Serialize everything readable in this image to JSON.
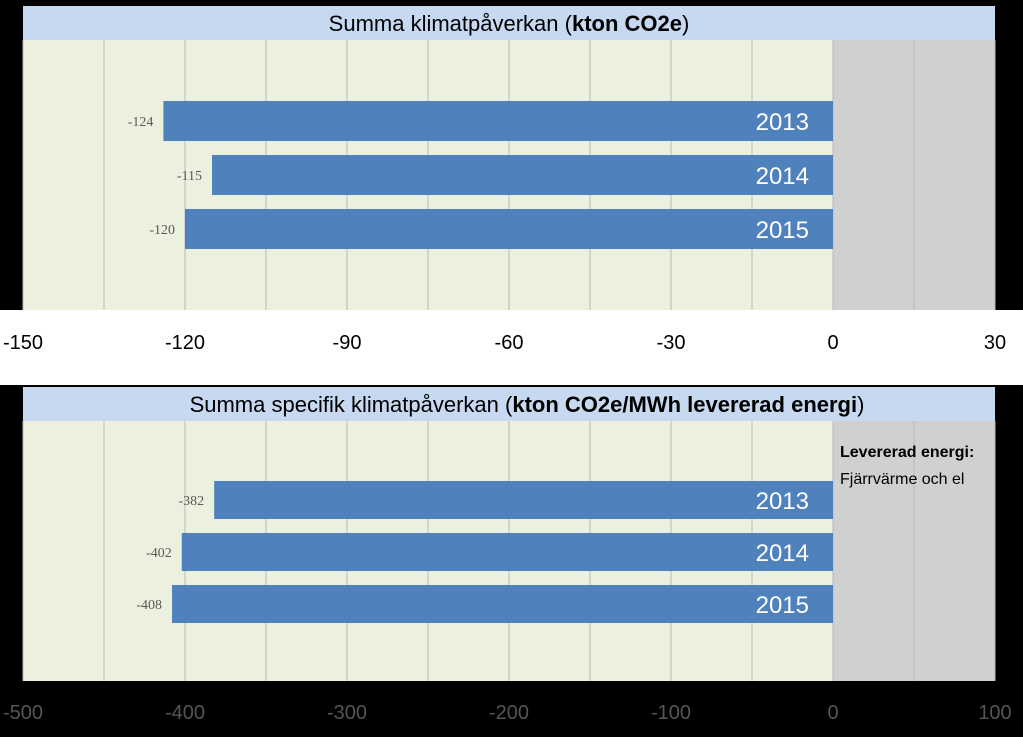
{
  "chart_data": [
    {
      "type": "bar",
      "orientation": "horizontal",
      "title_prefix": "Summa klimatpåverkan (",
      "title_bold": "kton CO2e",
      "title_suffix": ")",
      "categories": [
        "2013",
        "2014",
        "2015"
      ],
      "values": [
        -124,
        -115,
        -120
      ],
      "data_labels": [
        "-124",
        "-115",
        "-120"
      ],
      "xlim": [
        -150,
        30
      ],
      "ticks": [
        "-150",
        "-120",
        "-90",
        "-60",
        "-30",
        "0",
        "30"
      ],
      "shaded_range": [
        0,
        30
      ],
      "bar_color": "#4f81bd",
      "plot_bg": "#ebf1de",
      "shade_color": "#d0d0d0",
      "title_bg": "#c6d9f1"
    },
    {
      "type": "bar",
      "orientation": "horizontal",
      "title_prefix": "Summa specifik klimatpåverkan (",
      "title_bold": "kton CO2e/MWh levererad energi",
      "title_suffix": ")",
      "categories": [
        "2013",
        "2014",
        "2015"
      ],
      "values": [
        -382,
        -402,
        -408
      ],
      "data_labels": [
        "-382",
        "-402",
        "-408"
      ],
      "xlim": [
        -500,
        100
      ],
      "ticks": [
        "-500",
        "-400",
        "-300",
        "-200",
        "-100",
        "0",
        "100"
      ],
      "shaded_range": [
        0,
        100
      ],
      "annotation_title": "Levererad energi:",
      "annotation_text": "Fjärrvärme och el",
      "bar_color": "#4f81bd",
      "plot_bg": "#ebf1de",
      "shade_color": "#d0d0d0",
      "title_bg": "#c6d9f1"
    }
  ]
}
